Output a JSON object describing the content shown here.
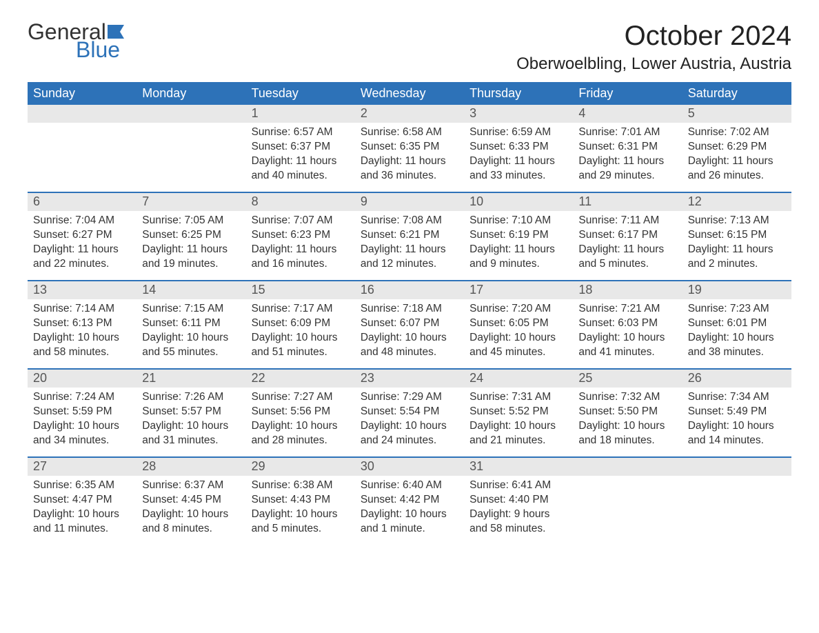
{
  "logo": {
    "text_top": "General",
    "text_bottom": "Blue",
    "flag_color": "#2d72b8",
    "text_color": "#333333"
  },
  "title": "October 2024",
  "location": "Oberwoelbling, Lower Austria, Austria",
  "colors": {
    "header_bg": "#2d72b8",
    "header_text": "#ffffff",
    "daynum_bg": "#e8e8e8",
    "daynum_text": "#555555",
    "body_text": "#333333",
    "week_divider": "#2d72b8",
    "background": "#ffffff"
  },
  "typography": {
    "month_title_fontsize": 40,
    "location_fontsize": 24,
    "weekday_fontsize": 18,
    "daynum_fontsize": 18,
    "body_fontsize": 15.5,
    "font_family": "Arial, Helvetica, sans-serif"
  },
  "layout": {
    "columns": 7,
    "rows": 5,
    "cell_min_height": 126
  },
  "weekdays": [
    "Sunday",
    "Monday",
    "Tuesday",
    "Wednesday",
    "Thursday",
    "Friday",
    "Saturday"
  ],
  "weeks": [
    [
      {
        "day": "",
        "sunrise": "",
        "sunset": "",
        "daylight": ""
      },
      {
        "day": "",
        "sunrise": "",
        "sunset": "",
        "daylight": ""
      },
      {
        "day": "1",
        "sunrise": "Sunrise: 6:57 AM",
        "sunset": "Sunset: 6:37 PM",
        "daylight": "Daylight: 11 hours and 40 minutes."
      },
      {
        "day": "2",
        "sunrise": "Sunrise: 6:58 AM",
        "sunset": "Sunset: 6:35 PM",
        "daylight": "Daylight: 11 hours and 36 minutes."
      },
      {
        "day": "3",
        "sunrise": "Sunrise: 6:59 AM",
        "sunset": "Sunset: 6:33 PM",
        "daylight": "Daylight: 11 hours and 33 minutes."
      },
      {
        "day": "4",
        "sunrise": "Sunrise: 7:01 AM",
        "sunset": "Sunset: 6:31 PM",
        "daylight": "Daylight: 11 hours and 29 minutes."
      },
      {
        "day": "5",
        "sunrise": "Sunrise: 7:02 AM",
        "sunset": "Sunset: 6:29 PM",
        "daylight": "Daylight: 11 hours and 26 minutes."
      }
    ],
    [
      {
        "day": "6",
        "sunrise": "Sunrise: 7:04 AM",
        "sunset": "Sunset: 6:27 PM",
        "daylight": "Daylight: 11 hours and 22 minutes."
      },
      {
        "day": "7",
        "sunrise": "Sunrise: 7:05 AM",
        "sunset": "Sunset: 6:25 PM",
        "daylight": "Daylight: 11 hours and 19 minutes."
      },
      {
        "day": "8",
        "sunrise": "Sunrise: 7:07 AM",
        "sunset": "Sunset: 6:23 PM",
        "daylight": "Daylight: 11 hours and 16 minutes."
      },
      {
        "day": "9",
        "sunrise": "Sunrise: 7:08 AM",
        "sunset": "Sunset: 6:21 PM",
        "daylight": "Daylight: 11 hours and 12 minutes."
      },
      {
        "day": "10",
        "sunrise": "Sunrise: 7:10 AM",
        "sunset": "Sunset: 6:19 PM",
        "daylight": "Daylight: 11 hours and 9 minutes."
      },
      {
        "day": "11",
        "sunrise": "Sunrise: 7:11 AM",
        "sunset": "Sunset: 6:17 PM",
        "daylight": "Daylight: 11 hours and 5 minutes."
      },
      {
        "day": "12",
        "sunrise": "Sunrise: 7:13 AM",
        "sunset": "Sunset: 6:15 PM",
        "daylight": "Daylight: 11 hours and 2 minutes."
      }
    ],
    [
      {
        "day": "13",
        "sunrise": "Sunrise: 7:14 AM",
        "sunset": "Sunset: 6:13 PM",
        "daylight": "Daylight: 10 hours and 58 minutes."
      },
      {
        "day": "14",
        "sunrise": "Sunrise: 7:15 AM",
        "sunset": "Sunset: 6:11 PM",
        "daylight": "Daylight: 10 hours and 55 minutes."
      },
      {
        "day": "15",
        "sunrise": "Sunrise: 7:17 AM",
        "sunset": "Sunset: 6:09 PM",
        "daylight": "Daylight: 10 hours and 51 minutes."
      },
      {
        "day": "16",
        "sunrise": "Sunrise: 7:18 AM",
        "sunset": "Sunset: 6:07 PM",
        "daylight": "Daylight: 10 hours and 48 minutes."
      },
      {
        "day": "17",
        "sunrise": "Sunrise: 7:20 AM",
        "sunset": "Sunset: 6:05 PM",
        "daylight": "Daylight: 10 hours and 45 minutes."
      },
      {
        "day": "18",
        "sunrise": "Sunrise: 7:21 AM",
        "sunset": "Sunset: 6:03 PM",
        "daylight": "Daylight: 10 hours and 41 minutes."
      },
      {
        "day": "19",
        "sunrise": "Sunrise: 7:23 AM",
        "sunset": "Sunset: 6:01 PM",
        "daylight": "Daylight: 10 hours and 38 minutes."
      }
    ],
    [
      {
        "day": "20",
        "sunrise": "Sunrise: 7:24 AM",
        "sunset": "Sunset: 5:59 PM",
        "daylight": "Daylight: 10 hours and 34 minutes."
      },
      {
        "day": "21",
        "sunrise": "Sunrise: 7:26 AM",
        "sunset": "Sunset: 5:57 PM",
        "daylight": "Daylight: 10 hours and 31 minutes."
      },
      {
        "day": "22",
        "sunrise": "Sunrise: 7:27 AM",
        "sunset": "Sunset: 5:56 PM",
        "daylight": "Daylight: 10 hours and 28 minutes."
      },
      {
        "day": "23",
        "sunrise": "Sunrise: 7:29 AM",
        "sunset": "Sunset: 5:54 PM",
        "daylight": "Daylight: 10 hours and 24 minutes."
      },
      {
        "day": "24",
        "sunrise": "Sunrise: 7:31 AM",
        "sunset": "Sunset: 5:52 PM",
        "daylight": "Daylight: 10 hours and 21 minutes."
      },
      {
        "day": "25",
        "sunrise": "Sunrise: 7:32 AM",
        "sunset": "Sunset: 5:50 PM",
        "daylight": "Daylight: 10 hours and 18 minutes."
      },
      {
        "day": "26",
        "sunrise": "Sunrise: 7:34 AM",
        "sunset": "Sunset: 5:49 PM",
        "daylight": "Daylight: 10 hours and 14 minutes."
      }
    ],
    [
      {
        "day": "27",
        "sunrise": "Sunrise: 6:35 AM",
        "sunset": "Sunset: 4:47 PM",
        "daylight": "Daylight: 10 hours and 11 minutes."
      },
      {
        "day": "28",
        "sunrise": "Sunrise: 6:37 AM",
        "sunset": "Sunset: 4:45 PM",
        "daylight": "Daylight: 10 hours and 8 minutes."
      },
      {
        "day": "29",
        "sunrise": "Sunrise: 6:38 AM",
        "sunset": "Sunset: 4:43 PM",
        "daylight": "Daylight: 10 hours and 5 minutes."
      },
      {
        "day": "30",
        "sunrise": "Sunrise: 6:40 AM",
        "sunset": "Sunset: 4:42 PM",
        "daylight": "Daylight: 10 hours and 1 minute."
      },
      {
        "day": "31",
        "sunrise": "Sunrise: 6:41 AM",
        "sunset": "Sunset: 4:40 PM",
        "daylight": "Daylight: 9 hours and 58 minutes."
      },
      {
        "day": "",
        "sunrise": "",
        "sunset": "",
        "daylight": ""
      },
      {
        "day": "",
        "sunrise": "",
        "sunset": "",
        "daylight": ""
      }
    ]
  ]
}
